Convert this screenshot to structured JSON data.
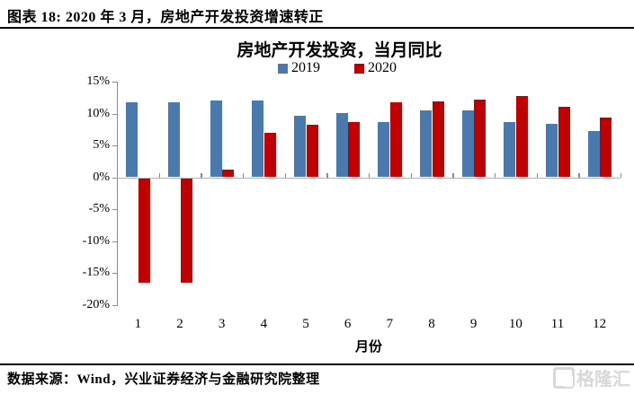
{
  "header": {
    "title": "图表 18:  2020 年 3 月，房地产开发投资增速转正"
  },
  "chart_data": {
    "type": "bar",
    "title": "房地产开发投资，当月同比",
    "categories": [
      "1",
      "2",
      "3",
      "4",
      "5",
      "6",
      "7",
      "8",
      "9",
      "10",
      "11",
      "12"
    ],
    "series": [
      {
        "name": "2019",
        "color": "#4A79AD",
        "values": [
          11.7,
          11.7,
          12.0,
          12.0,
          9.6,
          10.1,
          8.6,
          10.5,
          10.5,
          8.7,
          8.4,
          7.3
        ]
      },
      {
        "name": "2020",
        "color": "#C00000",
        "values": [
          -16.3,
          -16.3,
          1.2,
          7.0,
          8.2,
          8.6,
          11.7,
          11.9,
          12.2,
          12.8,
          11.0,
          9.4
        ]
      }
    ],
    "xlabel": "月份",
    "ylabel": "",
    "ylim": [
      -20,
      15
    ],
    "ytick_step": 5,
    "yticks": [
      "15%",
      "10%",
      "5%",
      "0%",
      "-5%",
      "-10%",
      "-15%",
      "-20%"
    ],
    "grid": false,
    "legend_position": "top",
    "axis_color": "#8c8c8c",
    "zero_line_color": "#b2b2b2"
  },
  "footer": {
    "source": "数据来源：Wind，兴业证券经济与金融研究院整理",
    "logo_text": "格隆汇"
  }
}
